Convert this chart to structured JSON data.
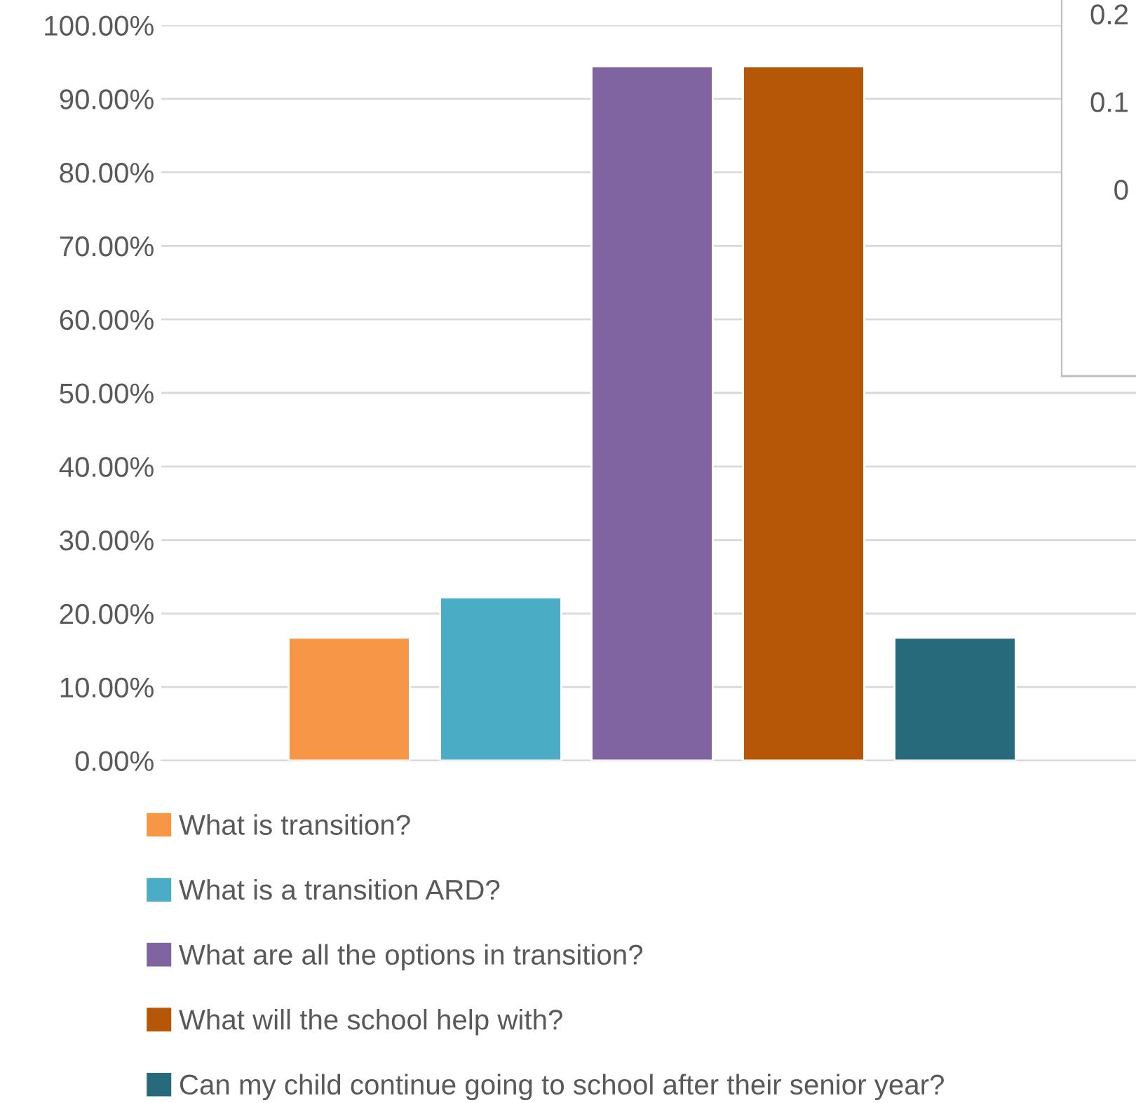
{
  "chart_data": [
    {
      "type": "bar",
      "categories": [
        null,
        null,
        null,
        null,
        null
      ],
      "series": [
        {
          "name": "What is transition?",
          "color": "#f79646",
          "values": [
            16.7,
            null,
            null,
            null,
            null
          ]
        },
        {
          "name": "What is a transition ARD?",
          "color": "#4bacc6",
          "values": [
            null,
            22.2,
            null,
            null,
            null
          ]
        },
        {
          "name": "What are all the options in transition?",
          "color": "#8064a2",
          "values": [
            null,
            null,
            94.4,
            null,
            null
          ]
        },
        {
          "name": "What will the school help with?",
          "color": "#b65708",
          "values": [
            null,
            null,
            null,
            94.4,
            null
          ]
        },
        {
          "name": "Can my child continue going to school after their senior year?",
          "color": "#276a7c",
          "values": [
            null,
            null,
            null,
            null,
            16.7
          ]
        }
      ],
      "ylim": [
        0,
        100
      ],
      "yticks": [
        {
          "value": 0,
          "label": "0.00%"
        },
        {
          "value": 10,
          "label": "10.00%"
        },
        {
          "value": 20,
          "label": "20.00%"
        },
        {
          "value": 30,
          "label": "30.00%"
        },
        {
          "value": 40,
          "label": "40.00%"
        },
        {
          "value": 50,
          "label": "50.00%"
        },
        {
          "value": 60,
          "label": "60.00%"
        },
        {
          "value": 70,
          "label": "70.00%"
        },
        {
          "value": 80,
          "label": "80.00%"
        },
        {
          "value": 90,
          "label": "90.00%"
        },
        {
          "value": 100,
          "label": "100.00%"
        }
      ],
      "grid": "y",
      "legend": "bottom"
    },
    {
      "type": "other",
      "annotations": [
        "0.2",
        "0.1",
        "0"
      ]
    }
  ]
}
